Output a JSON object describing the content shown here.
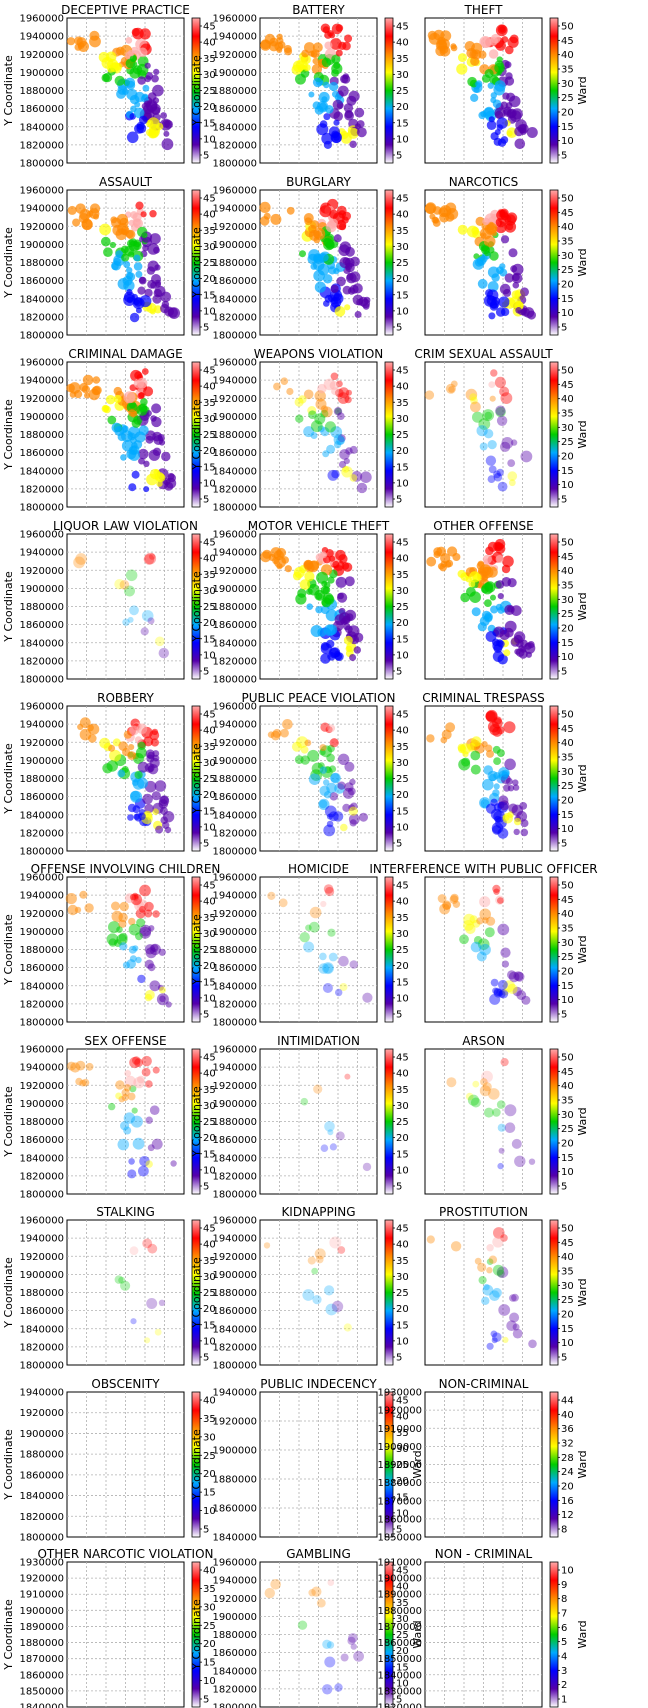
{
  "chart_data": {
    "type": "scatter",
    "layout": "10x3 grid",
    "grid": true,
    "colormap_series": "Ward",
    "panels": [
      {
        "title": "DECEPTIVE PRACTICE",
        "ylabel": "Y Coordinate",
        "yticks": [
          "1960000",
          "1940000",
          "1920000",
          "1900000",
          "1880000",
          "1860000",
          "1840000",
          "1820000",
          "1800000"
        ],
        "ylim": [
          1800000,
          1960000
        ],
        "colorbar_label": "",
        "colorbar_ticks": [
          "45",
          "40",
          "35",
          "30",
          "25",
          "20",
          "15",
          "10",
          "5"
        ],
        "density": 1.0
      },
      {
        "title": "BATTERY",
        "ylabel": "Y Coordinate",
        "yticks": [
          "1960000",
          "1940000",
          "1920000",
          "1900000",
          "1880000",
          "1860000",
          "1840000",
          "1820000",
          "1800000"
        ],
        "ylim": [
          1800000,
          1960000
        ],
        "colorbar_label": "",
        "colorbar_ticks": [
          "45",
          "40",
          "35",
          "30",
          "25",
          "20",
          "15",
          "10",
          "5"
        ],
        "density": 1.0
      },
      {
        "title": "THEFT",
        "ylabel": "",
        "yticks": [],
        "ylim": [
          1800000,
          1960000
        ],
        "colorbar_label": "Ward",
        "colorbar_ticks": [
          "50",
          "45",
          "40",
          "35",
          "30",
          "25",
          "20",
          "15",
          "10",
          "5"
        ],
        "density": 1.0
      },
      {
        "title": "ASSAULT",
        "ylabel": "Y Coordinate",
        "yticks": [
          "1960000",
          "1940000",
          "1920000",
          "1900000",
          "1880000",
          "1860000",
          "1840000",
          "1820000",
          "1800000"
        ],
        "ylim": [
          1800000,
          1960000
        ],
        "colorbar_label": "",
        "colorbar_ticks": [
          "45",
          "40",
          "35",
          "30",
          "25",
          "20",
          "15",
          "10",
          "5"
        ],
        "density": 1.0
      },
      {
        "title": "BURGLARY",
        "ylabel": "Y Coordinate",
        "yticks": [
          "1960000",
          "1940000",
          "1920000",
          "1900000",
          "1880000",
          "1860000",
          "1840000",
          "1820000",
          "1800000"
        ],
        "ylim": [
          1800000,
          1960000
        ],
        "colorbar_label": "",
        "colorbar_ticks": [
          "45",
          "40",
          "35",
          "30",
          "25",
          "20",
          "15",
          "10",
          "5"
        ],
        "density": 1.0
      },
      {
        "title": "NARCOTICS",
        "ylabel": "",
        "yticks": [],
        "ylim": [
          1800000,
          1960000
        ],
        "colorbar_label": "Ward",
        "colorbar_ticks": [
          "50",
          "45",
          "40",
          "35",
          "30",
          "25",
          "20",
          "15",
          "10",
          "5"
        ],
        "density": 1.0
      },
      {
        "title": "CRIMINAL DAMAGE",
        "ylabel": "Y Coordinate",
        "yticks": [
          "1960000",
          "1940000",
          "1920000",
          "1900000",
          "1880000",
          "1860000",
          "1840000",
          "1820000",
          "1800000"
        ],
        "ylim": [
          1800000,
          1960000
        ],
        "colorbar_label": "",
        "colorbar_ticks": [
          "45",
          "40",
          "35",
          "30",
          "25",
          "20",
          "15",
          "10",
          "5"
        ],
        "density": 1.0
      },
      {
        "title": "WEAPONS VIOLATION",
        "ylabel": "Y Coordinate",
        "yticks": [
          "1960000",
          "1940000",
          "1920000",
          "1900000",
          "1880000",
          "1860000",
          "1840000",
          "1820000",
          "1800000"
        ],
        "ylim": [
          1800000,
          1960000
        ],
        "colorbar_label": "",
        "colorbar_ticks": [
          "45",
          "40",
          "35",
          "30",
          "25",
          "20",
          "15",
          "10",
          "5"
        ],
        "density": 0.5
      },
      {
        "title": "CRIM SEXUAL ASSAULT",
        "ylabel": "",
        "yticks": [],
        "ylim": [
          1800000,
          1960000
        ],
        "colorbar_label": "Ward",
        "colorbar_ticks": [
          "50",
          "45",
          "40",
          "35",
          "30",
          "25",
          "20",
          "15",
          "10",
          "5"
        ],
        "density": 0.35
      },
      {
        "title": "LIQUOR LAW VIOLATION",
        "ylabel": "Y Coordinate",
        "yticks": [
          "1960000",
          "1940000",
          "1920000",
          "1900000",
          "1880000",
          "1860000",
          "1840000",
          "1820000",
          "1800000"
        ],
        "ylim": [
          1800000,
          1960000
        ],
        "colorbar_label": "",
        "colorbar_ticks": [
          "45",
          "40",
          "35",
          "30",
          "25",
          "20",
          "15",
          "10",
          "5"
        ],
        "density": 0.15
      },
      {
        "title": "MOTOR VEHICLE THEFT",
        "ylabel": "Y Coordinate",
        "yticks": [
          "1960000",
          "1940000",
          "1920000",
          "1900000",
          "1880000",
          "1860000",
          "1840000",
          "1820000",
          "1800000"
        ],
        "ylim": [
          1800000,
          1960000
        ],
        "colorbar_label": "",
        "colorbar_ticks": [
          "45",
          "40",
          "35",
          "30",
          "25",
          "20",
          "15",
          "10",
          "5"
        ],
        "density": 1.0
      },
      {
        "title": "OTHER OFFENSE",
        "ylabel": "",
        "yticks": [],
        "ylim": [
          1800000,
          1960000
        ],
        "colorbar_label": "Ward",
        "colorbar_ticks": [
          "50",
          "45",
          "40",
          "35",
          "30",
          "25",
          "20",
          "15",
          "10",
          "5"
        ],
        "density": 1.0
      },
      {
        "title": "ROBBERY",
        "ylabel": "Y Coordinate",
        "yticks": [
          "1960000",
          "1940000",
          "1920000",
          "1900000",
          "1880000",
          "1860000",
          "1840000",
          "1820000",
          "1800000"
        ],
        "ylim": [
          1800000,
          1960000
        ],
        "colorbar_label": "",
        "colorbar_ticks": [
          "45",
          "40",
          "35",
          "30",
          "25",
          "20",
          "15",
          "10",
          "5"
        ],
        "density": 0.8
      },
      {
        "title": "PUBLIC PEACE VIOLATION",
        "ylabel": "Y Coordinate",
        "yticks": [
          "1960000",
          "1940000",
          "1920000",
          "1900000",
          "1880000",
          "1860000",
          "1840000",
          "1820000",
          "1800000"
        ],
        "ylim": [
          1800000,
          1960000
        ],
        "colorbar_label": "",
        "colorbar_ticks": [
          "45",
          "40",
          "35",
          "30",
          "25",
          "20",
          "15",
          "10",
          "5"
        ],
        "density": 0.55
      },
      {
        "title": "CRIMINAL TRESPASS",
        "ylabel": "",
        "yticks": [],
        "ylim": [
          1800000,
          1960000
        ],
        "colorbar_label": "Ward",
        "colorbar_ticks": [
          "50",
          "45",
          "40",
          "35",
          "30",
          "25",
          "20",
          "15",
          "10",
          "5"
        ],
        "density": 0.75
      },
      {
        "title": "OFFENSE INVOLVING CHILDREN",
        "ylabel": "Y Coordinate",
        "yticks": [
          "1960000",
          "1940000",
          "1920000",
          "1900000",
          "1880000",
          "1860000",
          "1840000",
          "1820000",
          "1800000"
        ],
        "ylim": [
          1800000,
          1960000
        ],
        "colorbar_label": "",
        "colorbar_ticks": [
          "45",
          "40",
          "35",
          "30",
          "25",
          "20",
          "15",
          "10",
          "5"
        ],
        "density": 0.55
      },
      {
        "title": "HOMICIDE",
        "ylabel": "Y Coordinate",
        "yticks": [
          "1960000",
          "1940000",
          "1920000",
          "1900000",
          "1880000",
          "1860000",
          "1840000",
          "1820000",
          "1800000"
        ],
        "ylim": [
          1800000,
          1960000
        ],
        "colorbar_label": "",
        "colorbar_ticks": [
          "45",
          "40",
          "35",
          "30",
          "25",
          "20",
          "15",
          "10",
          "5"
        ],
        "density": 0.2
      },
      {
        "title": "INTERFERENCE WITH PUBLIC OFFICER",
        "ylabel": "",
        "yticks": [],
        "ylim": [
          1800000,
          1960000
        ],
        "colorbar_label": "Ward",
        "colorbar_ticks": [
          "50",
          "45",
          "40",
          "35",
          "30",
          "25",
          "20",
          "15",
          "10",
          "5"
        ],
        "density": 0.45
      },
      {
        "title": "SEX OFFENSE",
        "ylabel": "Y Coordinate",
        "yticks": [
          "1960000",
          "1940000",
          "1920000",
          "1900000",
          "1880000",
          "1860000",
          "1840000",
          "1820000",
          "1800000"
        ],
        "ylim": [
          1800000,
          1960000
        ],
        "colorbar_label": "",
        "colorbar_ticks": [
          "45",
          "40",
          "35",
          "30",
          "25",
          "20",
          "15",
          "10",
          "5"
        ],
        "density": 0.4
      },
      {
        "title": "INTIMIDATION",
        "ylabel": "Y Coordinate",
        "yticks": [
          "1960000",
          "1940000",
          "1920000",
          "1900000",
          "1880000",
          "1860000",
          "1840000",
          "1820000",
          "1800000"
        ],
        "ylim": [
          1800000,
          1960000
        ],
        "colorbar_label": "",
        "colorbar_ticks": [
          "45",
          "40",
          "35",
          "30",
          "25",
          "20",
          "15",
          "10",
          "5"
        ],
        "density": 0.08
      },
      {
        "title": "ARSON",
        "ylabel": "",
        "yticks": [],
        "ylim": [
          1800000,
          1960000
        ],
        "colorbar_label": "Ward",
        "colorbar_ticks": [
          "50",
          "45",
          "40",
          "35",
          "30",
          "25",
          "20",
          "15",
          "10",
          "5"
        ],
        "density": 0.2
      },
      {
        "title": "STALKING",
        "ylabel": "Y Coordinate",
        "yticks": [
          "1960000",
          "1940000",
          "1920000",
          "1900000",
          "1880000",
          "1860000",
          "1840000",
          "1820000",
          "1800000"
        ],
        "ylim": [
          1800000,
          1960000
        ],
        "colorbar_label": "",
        "colorbar_ticks": [
          "45",
          "40",
          "35",
          "30",
          "25",
          "20",
          "15",
          "10",
          "5"
        ],
        "density": 0.1
      },
      {
        "title": "KIDNAPPING",
        "ylabel": "Y Coordinate",
        "yticks": [
          "1960000",
          "1940000",
          "1920000",
          "1900000",
          "1880000",
          "1860000",
          "1840000",
          "1820000",
          "1800000"
        ],
        "ylim": [
          1800000,
          1960000
        ],
        "colorbar_label": "",
        "colorbar_ticks": [
          "45",
          "40",
          "35",
          "30",
          "25",
          "20",
          "15",
          "10",
          "5"
        ],
        "density": 0.12
      },
      {
        "title": "PROSTITUTION",
        "ylabel": "",
        "yticks": [],
        "ylim": [
          1800000,
          1960000
        ],
        "colorbar_label": "Ward",
        "colorbar_ticks": [
          "50",
          "45",
          "40",
          "35",
          "30",
          "25",
          "20",
          "15",
          "10",
          "5"
        ],
        "density": 0.3
      },
      {
        "title": "OBSCENITY",
        "ylabel": "Y Coordinate",
        "yticks": [
          "1940000",
          "1920000",
          "1900000",
          "1880000",
          "1860000",
          "1840000",
          "1820000",
          "1800000"
        ],
        "ylim": [
          1800000,
          1940000
        ],
        "colorbar_label": "",
        "colorbar_ticks": [
          "40",
          "35",
          "30",
          "25",
          "20",
          "15",
          "10",
          "5"
        ],
        "density": 0.0
      },
      {
        "title": "PUBLIC INDECENCY",
        "ylabel": "Y Coordinate",
        "yticks": [
          "1940000",
          "1920000",
          "1900000",
          "1880000",
          "1860000",
          "1840000"
        ],
        "ylim": [
          1840000,
          1940000
        ],
        "colorbar_label": "Ward",
        "colorbar_ticks": [
          "45",
          "40",
          "35",
          "30",
          "25",
          "20",
          "15",
          "10",
          "5"
        ],
        "density": 0.0
      },
      {
        "title": "NON-CRIMINAL",
        "ylabel": "",
        "yticks": [
          "1930000",
          "1920000",
          "1910000",
          "1900000",
          "1890000",
          "1880000",
          "1870000",
          "1860000",
          "1850000"
        ],
        "ylim": [
          1850000,
          1930000
        ],
        "colorbar_label": "Ward",
        "colorbar_ticks": [
          "44",
          "40",
          "36",
          "32",
          "28",
          "24",
          "20",
          "16",
          "12",
          "8"
        ],
        "density": 0.0
      },
      {
        "title": "OTHER NARCOTIC VIOLATION",
        "ylabel": "Y Coordinate",
        "yticks": [
          "1930000",
          "1920000",
          "1910000",
          "1900000",
          "1890000",
          "1880000",
          "1870000",
          "1860000",
          "1850000",
          "1840000"
        ],
        "ylim": [
          1840000,
          1930000
        ],
        "colorbar_label": "",
        "colorbar_ticks": [
          "40",
          "35",
          "30",
          "25",
          "20",
          "15",
          "10",
          "5"
        ],
        "density": 0.0
      },
      {
        "title": "GAMBLING",
        "ylabel": "Y Coordinate",
        "yticks": [
          "1960000",
          "1940000",
          "1920000",
          "1900000",
          "1880000",
          "1860000",
          "1840000",
          "1820000",
          "1800000"
        ],
        "ylim": [
          1800000,
          1960000
        ],
        "colorbar_label": "Ward",
        "colorbar_ticks": [
          "45",
          "40",
          "35",
          "30",
          "25",
          "20",
          "15",
          "10",
          "5"
        ],
        "density": 0.15
      },
      {
        "title": "NON - CRIMINAL",
        "ylabel": "",
        "yticks": [
          "1910000",
          "1900000",
          "1890000",
          "1880000",
          "1870000",
          "1860000",
          "1850000",
          "1840000",
          "1830000",
          "1820000"
        ],
        "ylim": [
          1820000,
          1910000
        ],
        "colorbar_label": "Ward",
        "colorbar_ticks": [
          "10",
          "9",
          "8",
          "7",
          "6",
          "5",
          "4",
          "3",
          "2",
          "1"
        ],
        "density": 0.0
      }
    ]
  },
  "colors": {
    "colormap": [
      "#ffffff",
      "#5500aa",
      "#0000ff",
      "#00aaff",
      "#00cc00",
      "#ffff00",
      "#ff8800",
      "#ff0000",
      "#ffaaaa"
    ],
    "grid": "#b0b0b0",
    "axis": "#000000"
  }
}
